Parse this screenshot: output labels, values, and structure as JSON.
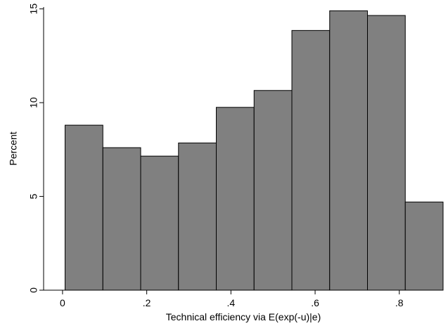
{
  "chart_data": {
    "type": "bar",
    "subtype": "histogram",
    "title": "",
    "xlabel": "Technical efficiency via E(exp(-u)|e)",
    "ylabel": "Percent",
    "bin_edges": [
      0.006,
      0.0958,
      0.1856,
      0.2754,
      0.3652,
      0.455,
      0.5448,
      0.6346,
      0.7244,
      0.8142,
      0.904
    ],
    "values": [
      8.8,
      7.6,
      7.15,
      7.85,
      9.75,
      10.65,
      13.85,
      14.9,
      14.65,
      4.7
    ],
    "xlim": [
      -0.045,
      0.904
    ],
    "ylim": [
      0,
      15.1
    ],
    "x_ticks": [
      {
        "value": 0,
        "label": "0"
      },
      {
        "value": 0.2,
        "label": ".2"
      },
      {
        "value": 0.4,
        "label": ".4"
      },
      {
        "value": 0.6,
        "label": ".6"
      },
      {
        "value": 0.8,
        "label": ".8"
      }
    ],
    "y_ticks": [
      {
        "value": 0,
        "label": "0"
      },
      {
        "value": 5,
        "label": "5"
      },
      {
        "value": 10,
        "label": "10"
      },
      {
        "value": 15,
        "label": "15"
      }
    ],
    "grid": false,
    "legend": "none",
    "bar_color": "#808080",
    "bar_edge_color": "#000000"
  }
}
